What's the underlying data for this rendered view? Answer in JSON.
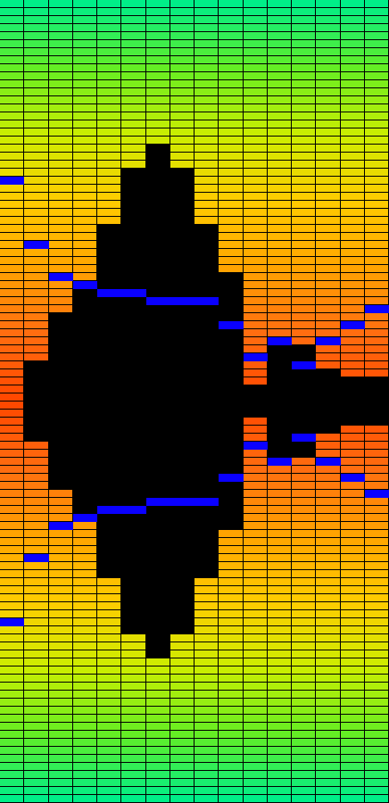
{
  "visualizer": {
    "orientation": "mirrored-vertical",
    "columns": 16,
    "segments_per_half": 50,
    "colors": {
      "peak": "#0a00ff",
      "background": "#000000",
      "gradient": [
        "#00ee88",
        "#66ee22",
        "#ccee00",
        "#ffcc00",
        "#ffa500",
        "#ff6e10",
        "#ff4800"
      ]
    },
    "levels": [
      1.0,
      0.9,
      0.78,
      0.7,
      0.57,
      0.41,
      0.35,
      0.41,
      0.57,
      0.68,
      0.95,
      0.86,
      0.86,
      0.92,
      0.94,
      0.94
    ],
    "peaks": [
      0.43,
      0.6,
      0.68,
      0.69,
      0.71,
      0.71,
      0.73,
      0.73,
      0.74,
      0.8,
      0.87,
      0.83,
      0.89,
      0.83,
      0.8,
      0.76
    ]
  }
}
